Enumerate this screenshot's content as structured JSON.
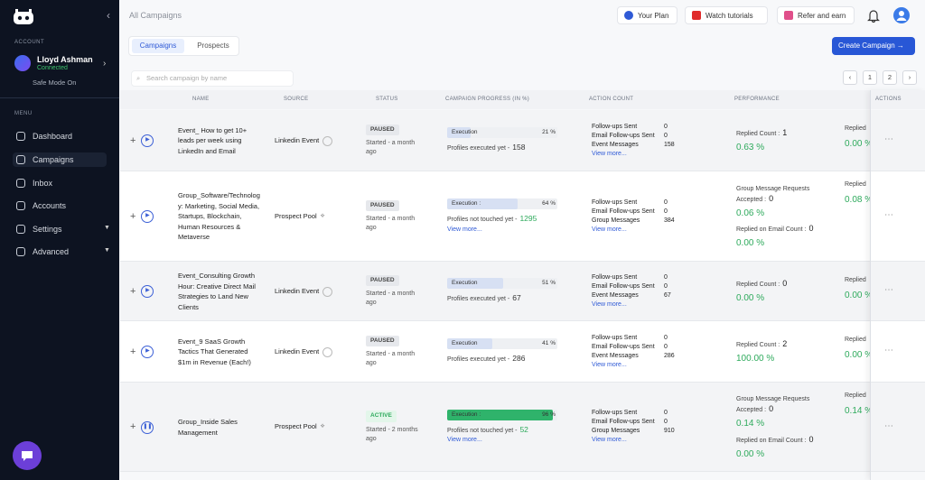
{
  "sidebar": {
    "account_label": "ACCOUNT",
    "user": {
      "name": "Lloyd Ashman",
      "status": "Connected"
    },
    "safe_mode": "Safe Mode On",
    "menu_label": "MENU",
    "menu": [
      "Dashboard",
      "Campaigns",
      "Inbox",
      "Accounts",
      "Settings",
      "Advanced"
    ]
  },
  "header": {
    "breadcrumb": "All Campaigns",
    "buttons": [
      "Your Plan",
      "Watch tutorials",
      "Refer and earn"
    ]
  },
  "tabs": [
    "Campaigns",
    "Prospects"
  ],
  "create_button": "Create Campaign",
  "search_placeholder": "Search campaign by name",
  "pagination": [
    "1",
    "2"
  ],
  "table": {
    "columns": [
      "NAME",
      "SOURCE",
      "STATUS",
      "CAMPAIGN PROGRESS (IN %)",
      "ACTION COUNT",
      "PERFORMANCE",
      "ACTIONS"
    ],
    "rows": [
      {
        "name": "Event_ How to get 10+ leads per week using LinkedIn and Email",
        "source": "Linkedin Event",
        "status": "PAUSED",
        "started": "Started - a month ago",
        "progress": {
          "label": "Execution",
          "value": 21,
          "value_label": "21 %",
          "note": "Profiles executed yet -",
          "count": 158,
          "count_color": "#333333"
        },
        "actions": [
          {
            "label": "Follow-ups Sent",
            "count": 0
          },
          {
            "label": "Email Follow-ups Sent",
            "count": 0
          },
          {
            "label": "Event Messages",
            "count": 158
          }
        ],
        "view_more": "View more...",
        "performance": [
          {
            "label": "Replied Count :",
            "value": 1,
            "rate": "0.63 %"
          }
        ],
        "performance_2": {
          "label": "Replied",
          "rate": "0.00 %"
        }
      },
      {
        "name": "Group_Software/Technology: Marketing, Social Media, Startups, Blockchain, Human Resources & Metaverse",
        "source": "Prospect Pool",
        "status": "PAUSED",
        "started": "Started - a month ago",
        "progress": {
          "label": "Execution :",
          "value": 64,
          "value_label": "64 %",
          "note": "Profiles not touched yet -",
          "count": 1295,
          "count_color": "#2eaa5c",
          "view_more": "View more..."
        },
        "actions": [
          {
            "label": "Follow-ups Sent",
            "count": 0
          },
          {
            "label": "Email Follow-ups Sent",
            "count": 0
          },
          {
            "label": "Group Messages",
            "count": 384
          }
        ],
        "view_more": "View more...",
        "performance": [
          {
            "label": "Group Message Requests Accepted :",
            "value": 0,
            "rate": "0.06 %"
          },
          {
            "label": "Replied on Email Count :",
            "value": 0,
            "rate": "0.00 %"
          }
        ],
        "performance_2": {
          "label": "Replied",
          "rate": "0.08 %"
        }
      },
      {
        "name": "Event_Consulting Growth Hour: Creative Direct Mail Strategies to Land New Clients",
        "source": "Linkedin Event",
        "status": "PAUSED",
        "started": "Started - a month ago",
        "progress": {
          "label": "Execution",
          "value": 51,
          "value_label": "51 %",
          "note": "Profiles executed yet -",
          "count": 67,
          "count_color": "#333333"
        },
        "actions": [
          {
            "label": "Follow-ups Sent",
            "count": 0
          },
          {
            "label": "Email Follow-ups Sent",
            "count": 0
          },
          {
            "label": "Event Messages",
            "count": 67
          }
        ],
        "view_more": "View more...",
        "performance": [
          {
            "label": "Replied Count :",
            "value": 0,
            "rate": "0.00 %"
          }
        ],
        "performance_2": {
          "label": "Replied",
          "rate": "0.00 %"
        }
      },
      {
        "name": "Event_9 SaaS Growth Tactics That Generated $1m in Revenue (Each!)",
        "source": "Linkedin Event",
        "status": "PAUSED",
        "started": "Started - a month ago",
        "progress": {
          "label": "Execution",
          "value": 41,
          "value_label": "41 %",
          "note": "Profiles executed yet -",
          "count": 286,
          "count_color": "#333333"
        },
        "actions": [
          {
            "label": "Follow-ups Sent",
            "count": 0
          },
          {
            "label": "Email Follow-ups Sent",
            "count": 0
          },
          {
            "label": "Event Messages",
            "count": 286
          }
        ],
        "view_more": "View more...",
        "performance": [
          {
            "label": "Replied Count :",
            "value": 2,
            "rate": "100.00 %"
          }
        ],
        "performance_2": {
          "label": "Replied",
          "rate": "0.00 %"
        }
      },
      {
        "name": "Group_Inside Sales Management",
        "source": "Prospect Pool",
        "status": "ACTIVE",
        "started": "Started - 2 months ago",
        "progress": {
          "label": "Execution :",
          "value": 96,
          "value_label": "96 %",
          "note": "Profiles not touched yet -",
          "count": 52,
          "count_color": "#2eaa5c",
          "view_more": "View more..."
        },
        "actions": [
          {
            "label": "Follow-ups Sent",
            "count": 0
          },
          {
            "label": "Email Follow-ups Sent",
            "count": 0
          },
          {
            "label": "Group Messages",
            "count": 910
          }
        ],
        "view_more": "View more...",
        "performance": [
          {
            "label": "Group Message Requests Accepted :",
            "value": 0,
            "rate": "0.14 %"
          },
          {
            "label": "Replied on Email Count :",
            "value": 0,
            "rate": "0.00 %"
          }
        ],
        "performance_2": {
          "label": "Replied",
          "rate": "0.14 %"
        }
      }
    ]
  }
}
